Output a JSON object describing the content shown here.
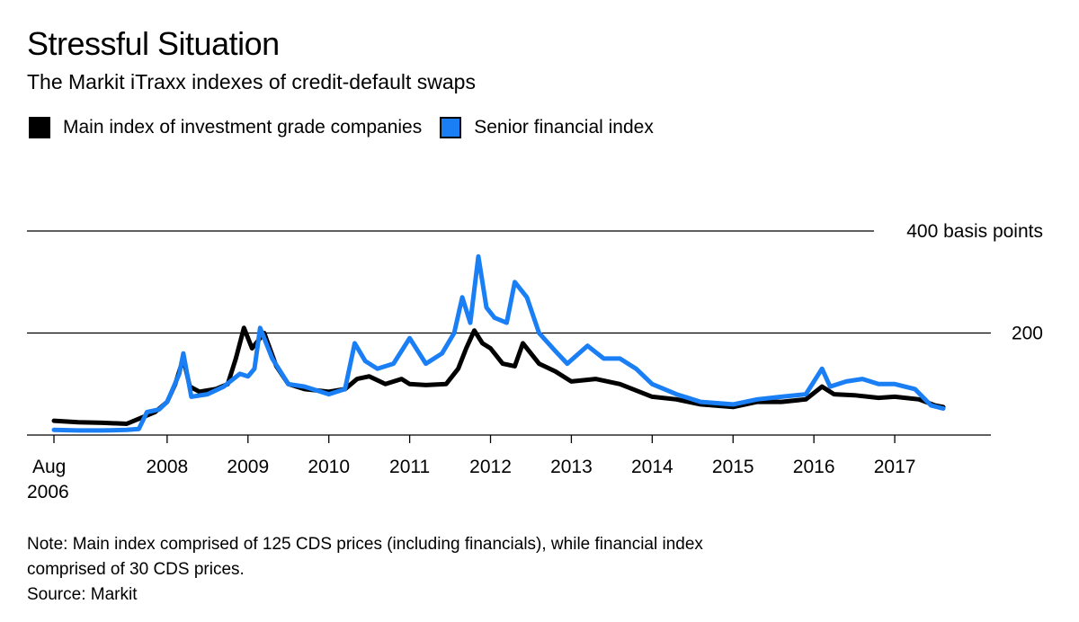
{
  "header": {
    "title": "Stressful Situation",
    "subtitle": "The Markit iTraxx indexes of credit-default swaps"
  },
  "legend": [
    {
      "label": "Main index of investment grade companies",
      "color": "#000000"
    },
    {
      "label": "Senior financial index",
      "color": "#1a7ff5"
    }
  ],
  "footer": {
    "note_line1": "Note: Main index comprised of 125 CDS prices (including financials), while financial index",
    "note_line2": "comprised of 30 CDS prices.",
    "source": "Source: Markit"
  },
  "chart_data": {
    "type": "line",
    "title": "Stressful Situation",
    "subtitle": "The Markit iTraxx indexes of credit-default swaps",
    "xlabel": "",
    "ylabel": "basis points",
    "xlim": [
      2006.6,
      2017.9
    ],
    "ylim": [
      0,
      400
    ],
    "y_gridlines": [
      {
        "value": 400,
        "label": "400 basis points"
      },
      {
        "value": 200,
        "label": "200"
      }
    ],
    "x_ticks": [
      {
        "value": 2006.6,
        "label": "Aug",
        "label2": "2006"
      },
      {
        "value": 2008,
        "label": "2008"
      },
      {
        "value": 2009,
        "label": "2009"
      },
      {
        "value": 2010,
        "label": "2010"
      },
      {
        "value": 2011,
        "label": "2011"
      },
      {
        "value": 2012,
        "label": "2012"
      },
      {
        "value": 2013,
        "label": "2013"
      },
      {
        "value": 2014,
        "label": "2014"
      },
      {
        "value": 2015,
        "label": "2015"
      },
      {
        "value": 2016,
        "label": "2016"
      },
      {
        "value": 2017,
        "label": "2017"
      }
    ],
    "series": [
      {
        "name": "Main index of investment grade companies",
        "color": "#000000",
        "points": [
          [
            2006.6,
            28
          ],
          [
            2006.9,
            25
          ],
          [
            2007.2,
            24
          ],
          [
            2007.5,
            22
          ],
          [
            2007.7,
            35
          ],
          [
            2007.85,
            45
          ],
          [
            2008.0,
            65
          ],
          [
            2008.1,
            100
          ],
          [
            2008.2,
            150
          ],
          [
            2008.28,
            95
          ],
          [
            2008.4,
            85
          ],
          [
            2008.6,
            90
          ],
          [
            2008.75,
            100
          ],
          [
            2008.85,
            150
          ],
          [
            2008.95,
            210
          ],
          [
            2009.05,
            170
          ],
          [
            2009.2,
            200
          ],
          [
            2009.35,
            135
          ],
          [
            2009.5,
            100
          ],
          [
            2009.7,
            90
          ],
          [
            2010.0,
            85
          ],
          [
            2010.2,
            90
          ],
          [
            2010.35,
            110
          ],
          [
            2010.5,
            115
          ],
          [
            2010.7,
            100
          ],
          [
            2010.9,
            110
          ],
          [
            2011.0,
            100
          ],
          [
            2011.2,
            98
          ],
          [
            2011.45,
            100
          ],
          [
            2011.6,
            130
          ],
          [
            2011.7,
            170
          ],
          [
            2011.8,
            205
          ],
          [
            2011.9,
            180
          ],
          [
            2012.0,
            170
          ],
          [
            2012.15,
            140
          ],
          [
            2012.3,
            135
          ],
          [
            2012.4,
            180
          ],
          [
            2012.6,
            140
          ],
          [
            2012.8,
            125
          ],
          [
            2013.0,
            105
          ],
          [
            2013.3,
            110
          ],
          [
            2013.6,
            100
          ],
          [
            2014.0,
            75
          ],
          [
            2014.3,
            70
          ],
          [
            2014.6,
            60
          ],
          [
            2015.0,
            55
          ],
          [
            2015.3,
            65
          ],
          [
            2015.6,
            65
          ],
          [
            2015.9,
            70
          ],
          [
            2016.1,
            95
          ],
          [
            2016.25,
            80
          ],
          [
            2016.5,
            78
          ],
          [
            2016.8,
            73
          ],
          [
            2017.0,
            75
          ],
          [
            2017.3,
            70
          ],
          [
            2017.5,
            58
          ],
          [
            2017.6,
            55
          ]
        ]
      },
      {
        "name": "Senior financial index",
        "color": "#1a7ff5",
        "points": [
          [
            2006.6,
            10
          ],
          [
            2006.9,
            9
          ],
          [
            2007.2,
            9
          ],
          [
            2007.5,
            10
          ],
          [
            2007.65,
            12
          ],
          [
            2007.75,
            45
          ],
          [
            2007.9,
            50
          ],
          [
            2008.0,
            65
          ],
          [
            2008.15,
            120
          ],
          [
            2008.2,
            160
          ],
          [
            2008.3,
            75
          ],
          [
            2008.5,
            80
          ],
          [
            2008.7,
            95
          ],
          [
            2008.9,
            120
          ],
          [
            2009.0,
            115
          ],
          [
            2009.08,
            130
          ],
          [
            2009.15,
            210
          ],
          [
            2009.3,
            150
          ],
          [
            2009.5,
            100
          ],
          [
            2009.7,
            95
          ],
          [
            2009.9,
            85
          ],
          [
            2010.0,
            80
          ],
          [
            2010.2,
            90
          ],
          [
            2010.32,
            180
          ],
          [
            2010.45,
            145
          ],
          [
            2010.6,
            130
          ],
          [
            2010.8,
            140
          ],
          [
            2011.0,
            190
          ],
          [
            2011.2,
            140
          ],
          [
            2011.4,
            160
          ],
          [
            2011.55,
            200
          ],
          [
            2011.65,
            270
          ],
          [
            2011.75,
            220
          ],
          [
            2011.85,
            350
          ],
          [
            2011.95,
            250
          ],
          [
            2012.05,
            230
          ],
          [
            2012.2,
            220
          ],
          [
            2012.3,
            300
          ],
          [
            2012.45,
            270
          ],
          [
            2012.6,
            200
          ],
          [
            2012.8,
            165
          ],
          [
            2012.95,
            140
          ],
          [
            2013.2,
            175
          ],
          [
            2013.4,
            150
          ],
          [
            2013.6,
            150
          ],
          [
            2013.8,
            130
          ],
          [
            2014.0,
            100
          ],
          [
            2014.3,
            80
          ],
          [
            2014.6,
            65
          ],
          [
            2015.0,
            60
          ],
          [
            2015.3,
            70
          ],
          [
            2015.6,
            75
          ],
          [
            2015.9,
            80
          ],
          [
            2016.1,
            130
          ],
          [
            2016.2,
            95
          ],
          [
            2016.4,
            105
          ],
          [
            2016.6,
            110
          ],
          [
            2016.8,
            100
          ],
          [
            2017.0,
            100
          ],
          [
            2017.25,
            90
          ],
          [
            2017.45,
            58
          ],
          [
            2017.6,
            52
          ]
        ]
      }
    ]
  }
}
